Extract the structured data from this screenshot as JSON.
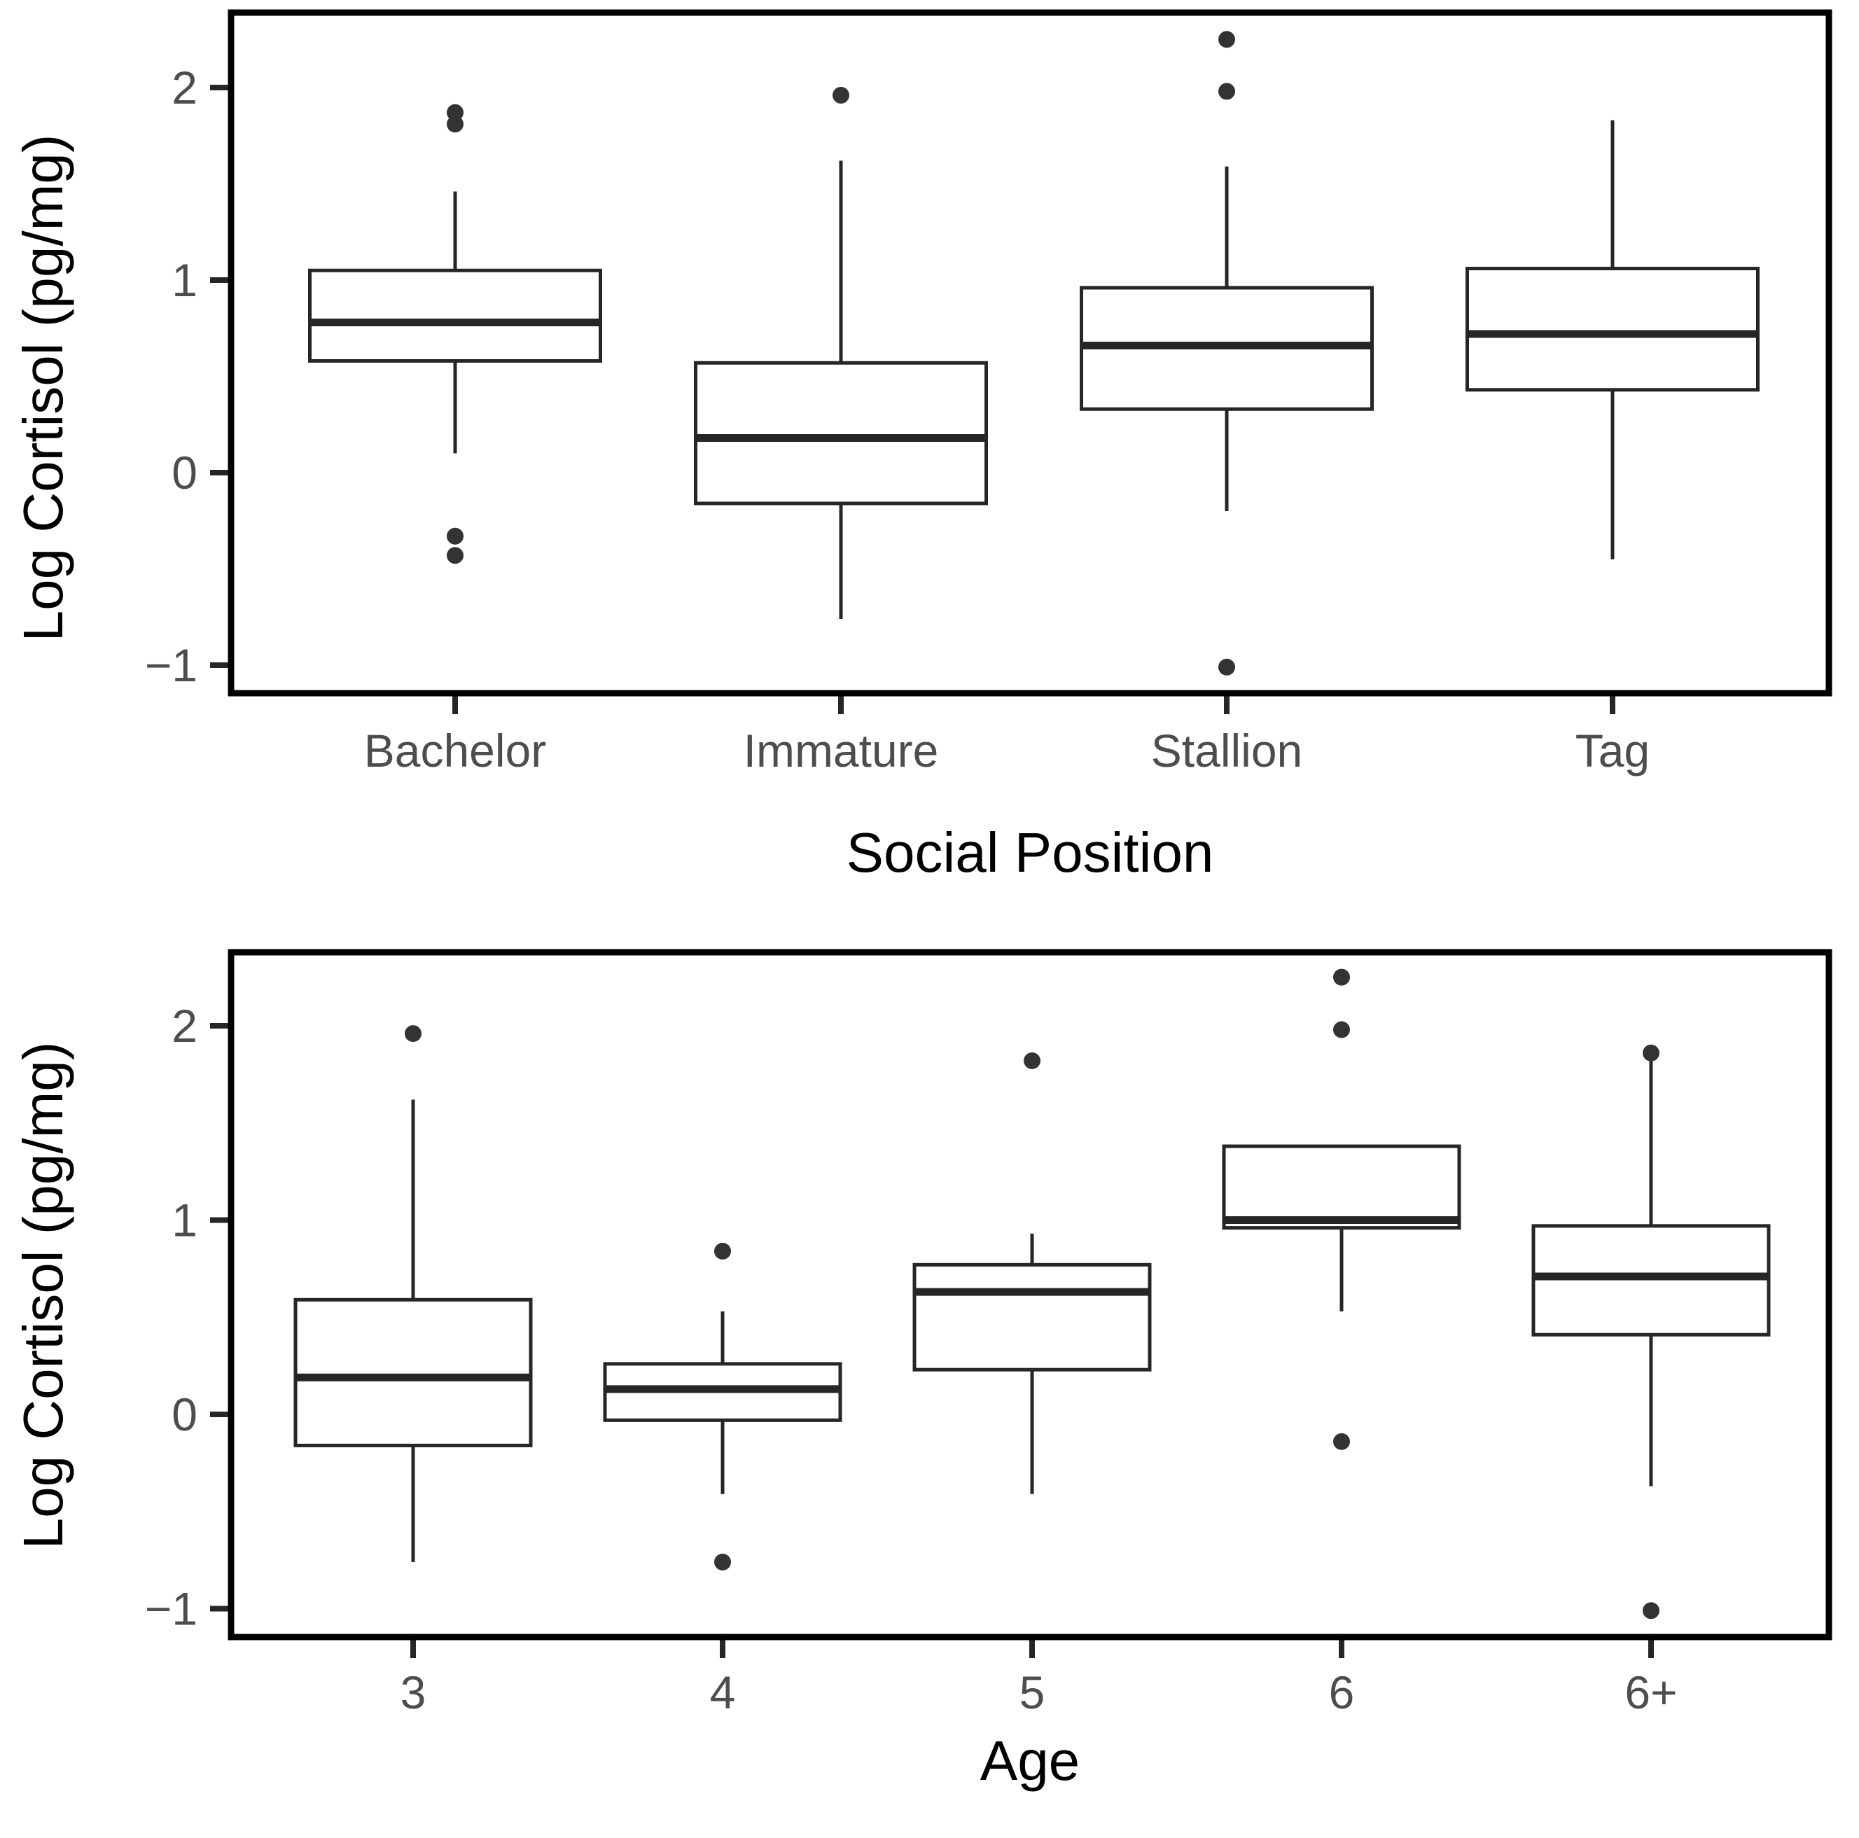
{
  "chart_data": [
    {
      "type": "box",
      "orientation": "vertical",
      "title": "",
      "xlabel": "Social Position",
      "ylabel": "Log Cortisol (pg/mg)",
      "ylim": [
        -1.15,
        2.39
      ],
      "grid": false,
      "legend": "none",
      "yticks": [
        {
          "value": 2,
          "label": "2"
        },
        {
          "value": 1,
          "label": "1"
        },
        {
          "value": 0,
          "label": "0"
        },
        {
          "value": -1,
          "label": "−1"
        }
      ],
      "categories": [
        "Bachelor",
        "Immature",
        "Stallion",
        "Tag"
      ],
      "boxes": [
        {
          "category": "Bachelor",
          "whisker_low": 0.1,
          "q1": 0.58,
          "median": 0.78,
          "q3": 1.05,
          "whisker_high": 1.46,
          "outliers": [
            1.87,
            1.81,
            -0.33,
            -0.43
          ]
        },
        {
          "category": "Immature",
          "whisker_low": -0.76,
          "q1": -0.16,
          "median": 0.18,
          "q3": 0.57,
          "whisker_high": 1.62,
          "outliers": [
            1.96
          ]
        },
        {
          "category": "Stallion",
          "whisker_low": -0.2,
          "q1": 0.33,
          "median": 0.66,
          "q3": 0.96,
          "whisker_high": 1.59,
          "outliers": [
            2.25,
            1.98,
            -1.01
          ]
        },
        {
          "category": "Tag",
          "whisker_low": -0.45,
          "q1": 0.43,
          "median": 0.72,
          "q3": 1.06,
          "whisker_high": 1.83,
          "outliers": []
        }
      ],
      "box_fill": "#ffffff",
      "line_color": "#262626",
      "tick_label_color": "#4d4d4d",
      "title_color": "#000000"
    },
    {
      "type": "box",
      "orientation": "vertical",
      "title": "",
      "xlabel": "Age",
      "ylabel": "Log Cortisol (pg/mg)",
      "ylim": [
        -1.15,
        2.38
      ],
      "grid": false,
      "legend": "none",
      "yticks": [
        {
          "value": 2,
          "label": "2"
        },
        {
          "value": 1,
          "label": "1"
        },
        {
          "value": 0,
          "label": "0"
        },
        {
          "value": -1,
          "label": "−1"
        }
      ],
      "categories": [
        "3",
        "4",
        "5",
        "6",
        "6+"
      ],
      "boxes": [
        {
          "category": "3",
          "whisker_low": -0.76,
          "q1": -0.16,
          "median": 0.19,
          "q3": 0.59,
          "whisker_high": 1.62,
          "outliers": [
            1.96
          ]
        },
        {
          "category": "4",
          "whisker_low": -0.41,
          "q1": -0.03,
          "median": 0.13,
          "q3": 0.26,
          "whisker_high": 0.53,
          "outliers": [
            0.84,
            -0.76
          ]
        },
        {
          "category": "5",
          "whisker_low": -0.41,
          "q1": 0.23,
          "median": 0.63,
          "q3": 0.77,
          "whisker_high": 0.93,
          "outliers": [
            1.82
          ]
        },
        {
          "category": "6",
          "whisker_low": 0.53,
          "q1": 0.96,
          "median": 1.0,
          "q3": 1.38,
          "whisker_high": 1.38,
          "outliers": [
            2.25,
            1.98,
            -0.14
          ]
        },
        {
          "category": "6+",
          "whisker_low": -0.37,
          "q1": 0.41,
          "median": 0.71,
          "q3": 0.97,
          "whisker_high": 1.84,
          "outliers": [
            1.86,
            -1.01
          ]
        }
      ],
      "box_fill": "#ffffff",
      "line_color": "#262626",
      "tick_label_color": "#4d4d4d",
      "title_color": "#000000"
    }
  ]
}
